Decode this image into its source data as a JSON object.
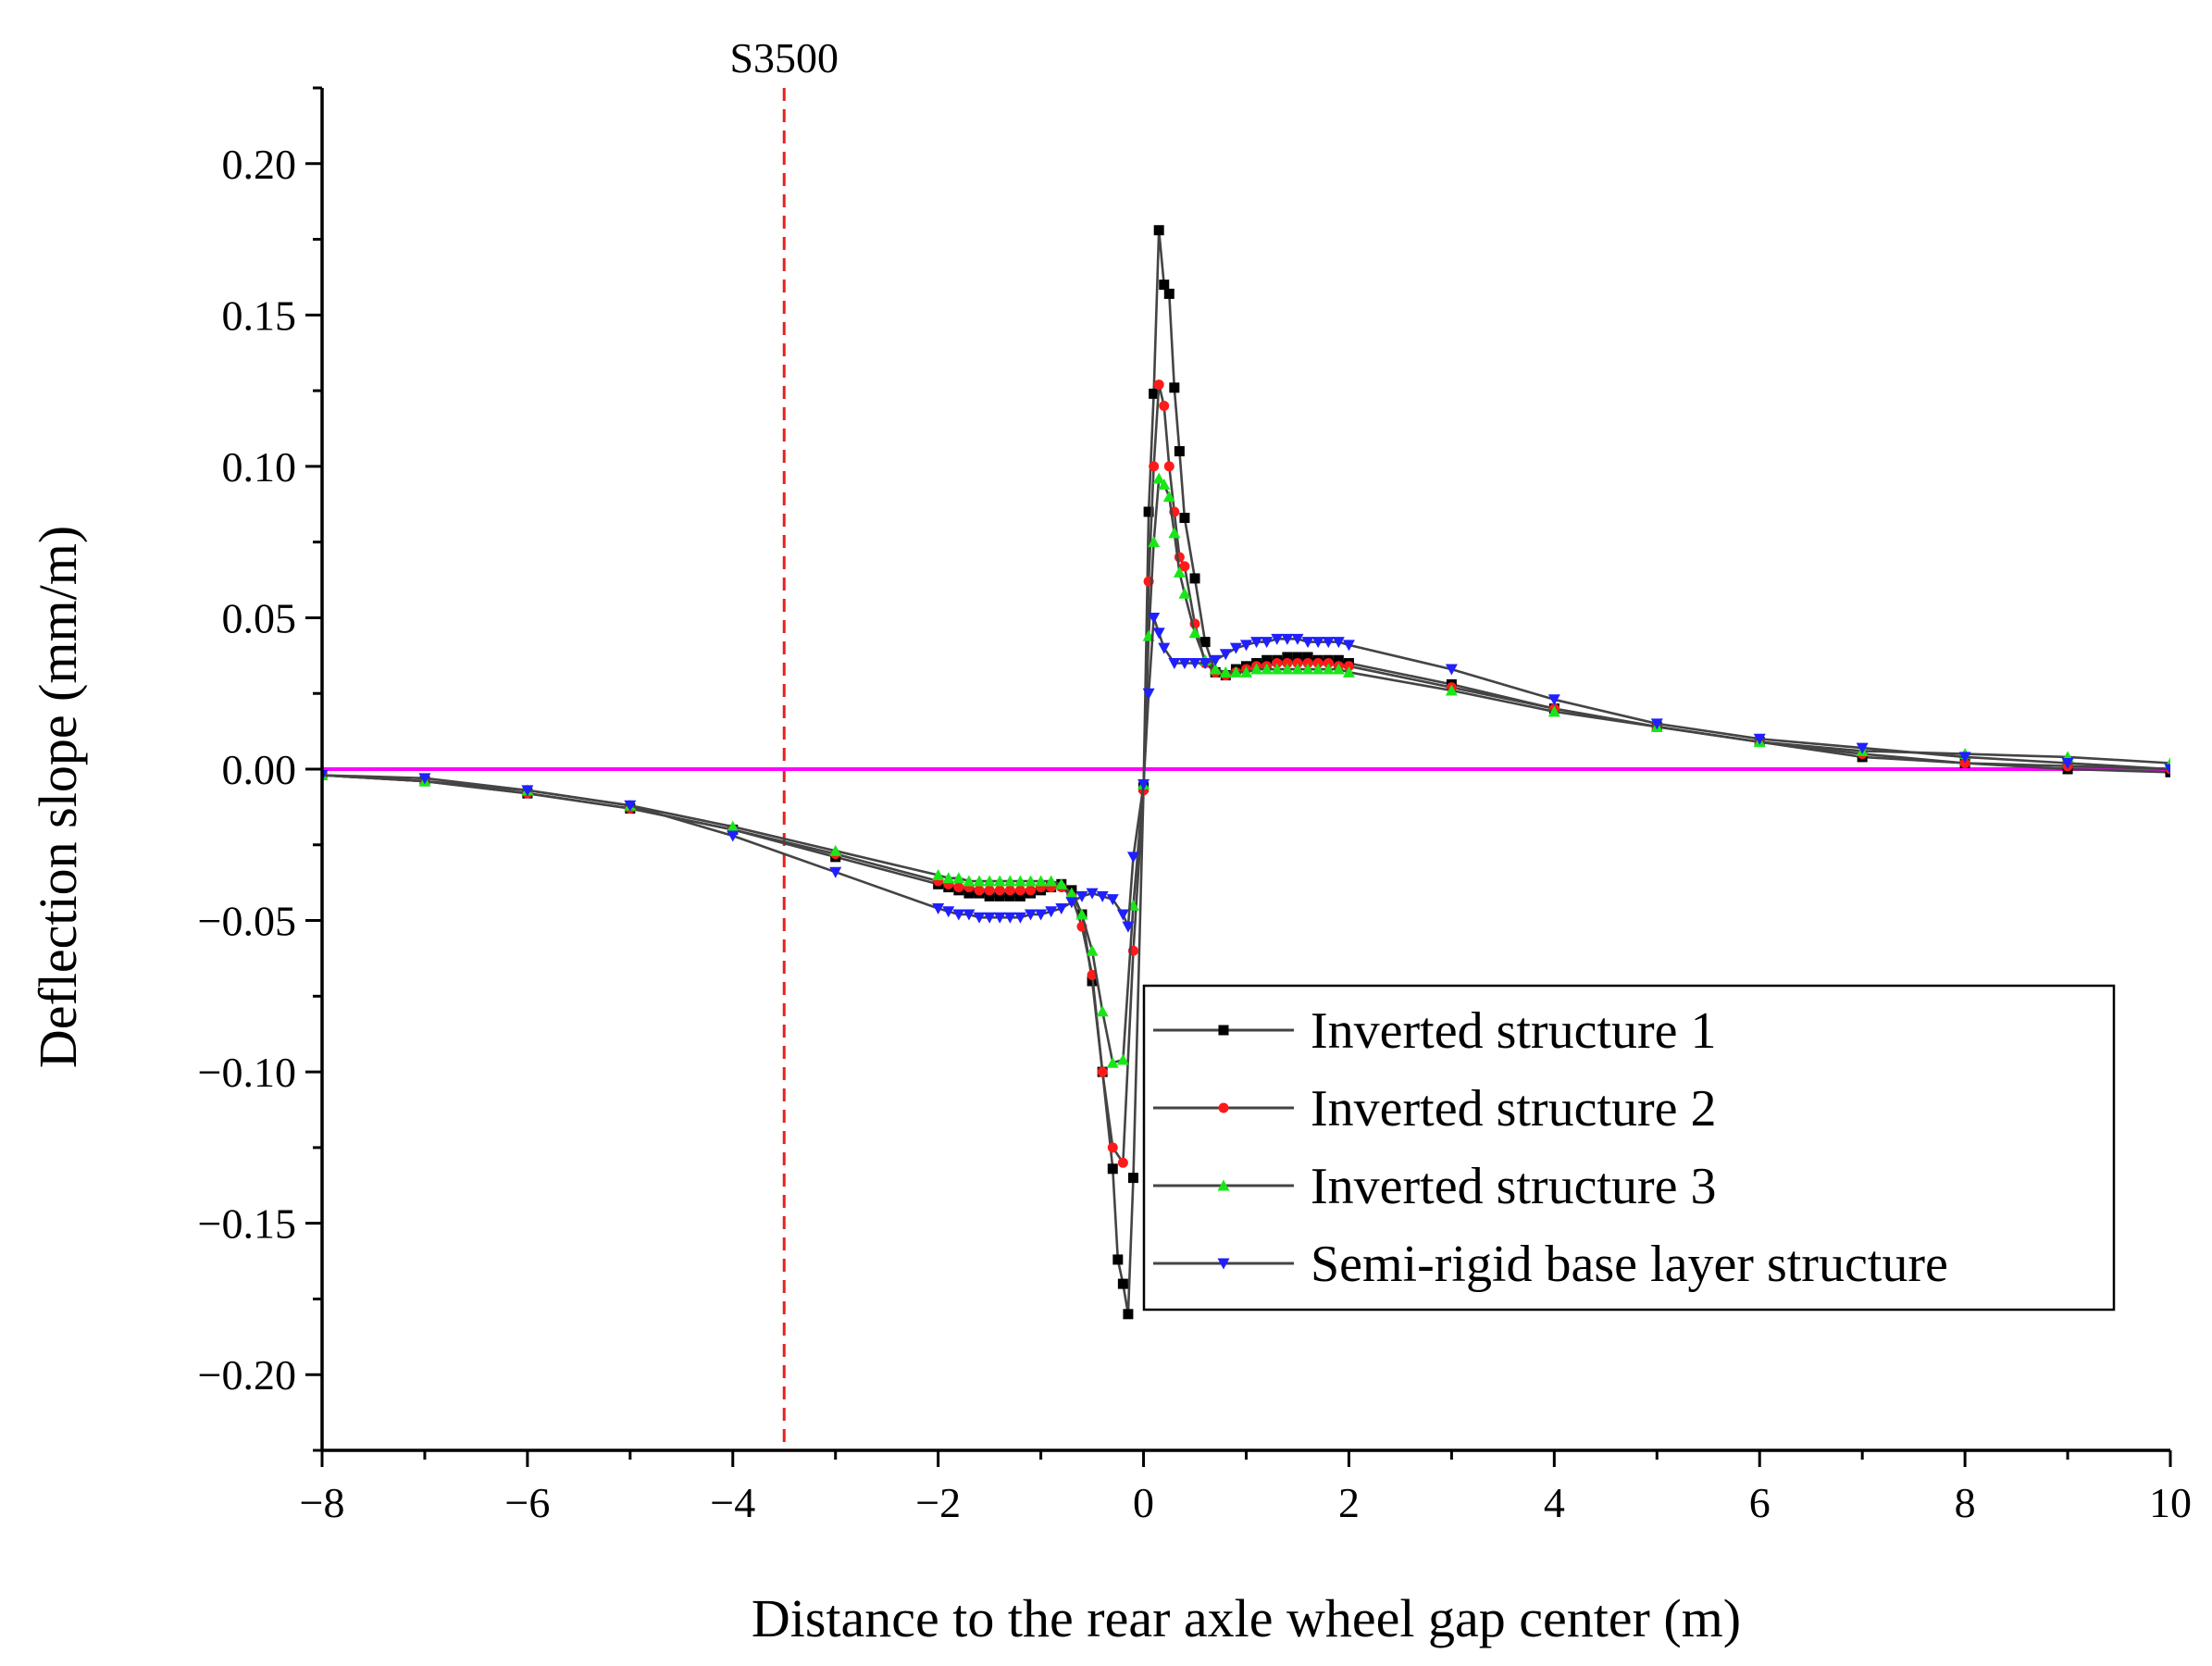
{
  "chart_data": {
    "type": "line",
    "title": "",
    "xlabel": "Distance to the rear axle wheel gap center (m)",
    "ylabel": "Deflection slope (mm/m)",
    "xlim": [
      -8,
      10
    ],
    "ylim": [
      -0.225,
      0.225
    ],
    "xticks": [
      -8,
      -6,
      -4,
      -2,
      0,
      2,
      4,
      6,
      8,
      10
    ],
    "xtick_labels": [
      "−8",
      "−6",
      "−4",
      "−2",
      "0",
      "2",
      "4",
      "6",
      "8",
      "10"
    ],
    "yticks": [
      0.2,
      0.15,
      0.1,
      0.05,
      0.0,
      -0.05,
      -0.1,
      -0.15,
      -0.2
    ],
    "ytick_labels": [
      "0.20",
      "0.15",
      "0.10",
      "0.05",
      "0.00",
      "−0.05",
      "−0.10",
      "−0.15",
      "−0.20"
    ],
    "grid": false,
    "legend_position": "lower-right",
    "reference_lines": [
      {
        "type": "vertical",
        "x": -3.5,
        "label": "S3500",
        "color": "#e8201e",
        "style": "dashed"
      },
      {
        "type": "horizontal",
        "y": 0.0,
        "color": "#ff00ff",
        "style": "solid"
      }
    ],
    "series": [
      {
        "name": "Inverted structure 1",
        "color": "#000000",
        "marker": "square",
        "x": [
          -8,
          -7,
          -6,
          -5,
          -4,
          -3,
          -2,
          -1.9,
          -1.8,
          -1.7,
          -1.6,
          -1.5,
          -1.4,
          -1.3,
          -1.2,
          -1.1,
          -1.0,
          -0.9,
          -0.8,
          -0.7,
          -0.6,
          -0.5,
          -0.4,
          -0.3,
          -0.25,
          -0.2,
          -0.15,
          -0.1,
          0.0,
          0.05,
          0.1,
          0.15,
          0.2,
          0.25,
          0.3,
          0.35,
          0.4,
          0.5,
          0.6,
          0.7,
          0.8,
          0.9,
          1.0,
          1.1,
          1.2,
          1.3,
          1.4,
          1.5,
          1.6,
          1.7,
          1.8,
          1.9,
          2.0,
          3,
          4,
          5,
          6,
          7,
          8,
          9,
          10
        ],
        "y": [
          -0.002,
          -0.004,
          -0.008,
          -0.013,
          -0.02,
          -0.029,
          -0.038,
          -0.039,
          -0.04,
          -0.041,
          -0.041,
          -0.042,
          -0.042,
          -0.042,
          -0.042,
          -0.041,
          -0.04,
          -0.039,
          -0.038,
          -0.04,
          -0.048,
          -0.07,
          -0.1,
          -0.132,
          -0.162,
          -0.17,
          -0.18,
          -0.135,
          -0.006,
          0.085,
          0.124,
          0.178,
          0.16,
          0.157,
          0.126,
          0.105,
          0.083,
          0.063,
          0.042,
          0.032,
          0.031,
          0.033,
          0.034,
          0.035,
          0.036,
          0.036,
          0.037,
          0.037,
          0.037,
          0.036,
          0.036,
          0.036,
          0.035,
          0.028,
          0.02,
          0.014,
          0.009,
          0.004,
          0.002,
          0.0,
          -0.001
        ]
      },
      {
        "name": "Inverted structure 2",
        "color": "#ff1a1a",
        "marker": "circle",
        "x": [
          -8,
          -7,
          -6,
          -5,
          -4,
          -3,
          -2,
          -1.9,
          -1.8,
          -1.7,
          -1.6,
          -1.5,
          -1.4,
          -1.3,
          -1.2,
          -1.1,
          -1.0,
          -0.9,
          -0.8,
          -0.7,
          -0.6,
          -0.5,
          -0.4,
          -0.3,
          -0.2,
          -0.1,
          0.0,
          0.05,
          0.1,
          0.15,
          0.2,
          0.25,
          0.3,
          0.35,
          0.4,
          0.5,
          0.6,
          0.7,
          0.8,
          0.9,
          1.0,
          1.1,
          1.2,
          1.3,
          1.4,
          1.5,
          1.6,
          1.7,
          1.8,
          1.9,
          2.0,
          3,
          4,
          5,
          6,
          7,
          8,
          9,
          10
        ],
        "y": [
          -0.002,
          -0.004,
          -0.008,
          -0.013,
          -0.02,
          -0.028,
          -0.037,
          -0.038,
          -0.039,
          -0.039,
          -0.04,
          -0.04,
          -0.04,
          -0.04,
          -0.04,
          -0.04,
          -0.039,
          -0.039,
          -0.039,
          -0.042,
          -0.052,
          -0.068,
          -0.1,
          -0.125,
          -0.13,
          -0.06,
          -0.007,
          0.062,
          0.1,
          0.127,
          0.12,
          0.1,
          0.085,
          0.07,
          0.067,
          0.048,
          0.035,
          0.032,
          0.031,
          0.032,
          0.033,
          0.034,
          0.034,
          0.035,
          0.035,
          0.035,
          0.035,
          0.035,
          0.035,
          0.034,
          0.034,
          0.027,
          0.02,
          0.014,
          0.009,
          0.005,
          0.002,
          0.001,
          0.0
        ]
      },
      {
        "name": "Inverted structure 3",
        "color": "#19e619",
        "marker": "triangle-up",
        "x": [
          -8,
          -7,
          -6,
          -5,
          -4,
          -3,
          -2,
          -1.9,
          -1.8,
          -1.7,
          -1.6,
          -1.5,
          -1.4,
          -1.3,
          -1.2,
          -1.1,
          -1.0,
          -0.9,
          -0.8,
          -0.7,
          -0.6,
          -0.5,
          -0.4,
          -0.3,
          -0.2,
          -0.1,
          0.0,
          0.05,
          0.1,
          0.15,
          0.2,
          0.25,
          0.3,
          0.35,
          0.4,
          0.5,
          0.6,
          0.7,
          0.8,
          0.9,
          1.0,
          1.1,
          1.2,
          1.3,
          1.4,
          1.5,
          1.6,
          1.7,
          1.8,
          1.9,
          2.0,
          3,
          4,
          5,
          6,
          7,
          8,
          9,
          10
        ],
        "y": [
          -0.002,
          -0.004,
          -0.007,
          -0.012,
          -0.019,
          -0.027,
          -0.035,
          -0.036,
          -0.036,
          -0.037,
          -0.037,
          -0.037,
          -0.037,
          -0.037,
          -0.037,
          -0.037,
          -0.037,
          -0.037,
          -0.038,
          -0.041,
          -0.048,
          -0.06,
          -0.08,
          -0.097,
          -0.096,
          -0.045,
          -0.005,
          0.044,
          0.075,
          0.096,
          0.094,
          0.09,
          0.078,
          0.065,
          0.058,
          0.045,
          0.036,
          0.033,
          0.032,
          0.032,
          0.032,
          0.033,
          0.033,
          0.033,
          0.033,
          0.033,
          0.033,
          0.033,
          0.033,
          0.033,
          0.032,
          0.026,
          0.019,
          0.014,
          0.009,
          0.006,
          0.005,
          0.004,
          0.002
        ]
      },
      {
        "name": "Semi-rigid base layer structure",
        "color": "#1f1fff",
        "marker": "triangle-down",
        "x": [
          -8,
          -7,
          -6,
          -5,
          -4,
          -3,
          -2,
          -1.9,
          -1.8,
          -1.7,
          -1.6,
          -1.5,
          -1.4,
          -1.3,
          -1.2,
          -1.1,
          -1.0,
          -0.9,
          -0.8,
          -0.7,
          -0.6,
          -0.5,
          -0.4,
          -0.3,
          -0.2,
          -0.15,
          -0.1,
          0.0,
          0.05,
          0.1,
          0.15,
          0.2,
          0.3,
          0.4,
          0.5,
          0.6,
          0.7,
          0.8,
          0.9,
          1.0,
          1.1,
          1.2,
          1.3,
          1.4,
          1.5,
          1.6,
          1.7,
          1.8,
          1.9,
          2.0,
          3,
          4,
          5,
          6,
          7,
          8,
          9,
          10
        ],
        "y": [
          -0.002,
          -0.003,
          -0.007,
          -0.012,
          -0.022,
          -0.034,
          -0.046,
          -0.047,
          -0.048,
          -0.048,
          -0.049,
          -0.049,
          -0.049,
          -0.049,
          -0.049,
          -0.048,
          -0.048,
          -0.047,
          -0.046,
          -0.044,
          -0.042,
          -0.041,
          -0.042,
          -0.043,
          -0.048,
          -0.052,
          -0.029,
          -0.005,
          0.025,
          0.05,
          0.045,
          0.04,
          0.035,
          0.035,
          0.035,
          0.035,
          0.036,
          0.038,
          0.04,
          0.041,
          0.042,
          0.042,
          0.043,
          0.043,
          0.043,
          0.042,
          0.042,
          0.042,
          0.042,
          0.041,
          0.033,
          0.023,
          0.015,
          0.01,
          0.007,
          0.004,
          0.002,
          0.0
        ]
      }
    ]
  }
}
